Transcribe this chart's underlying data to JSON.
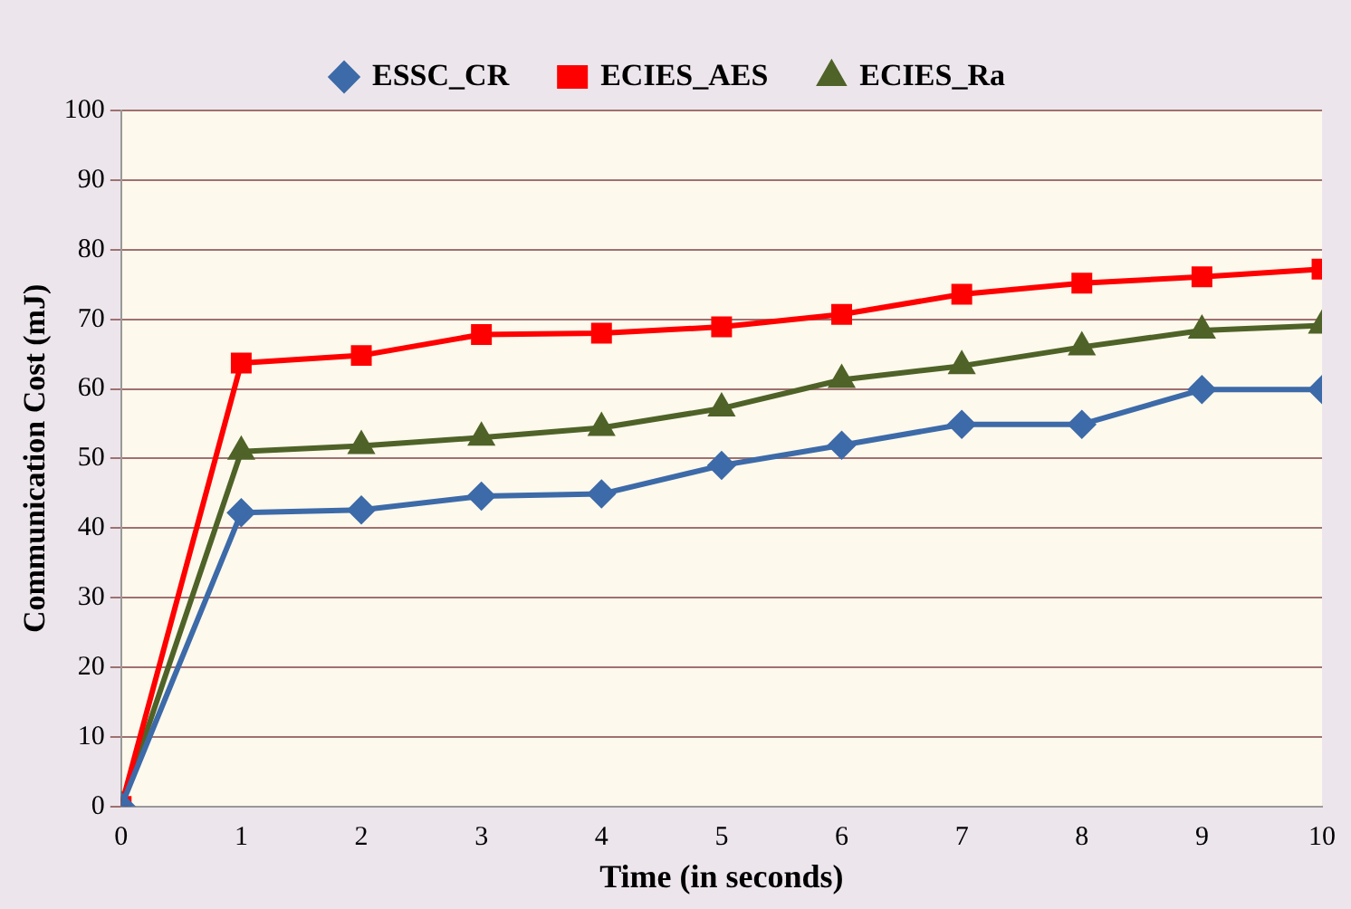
{
  "chart_data": {
    "type": "line",
    "xlabel": "Time (in seconds)",
    "ylabel": "Communication Cost (mJ)",
    "x": [
      0,
      1,
      2,
      3,
      4,
      5,
      6,
      7,
      8,
      9,
      10
    ],
    "series": [
      {
        "name": "ESSC_CR",
        "color": "#3d6aa8",
        "marker": "diamond",
        "values": [
          0,
          42.2,
          42.6,
          44.6,
          44.9,
          49,
          51.9,
          54.9,
          54.9,
          59.9,
          59.9
        ]
      },
      {
        "name": "ECIES_AES",
        "color": "#ff0000",
        "marker": "square",
        "values": [
          0,
          63.7,
          64.8,
          67.8,
          68,
          68.9,
          70.7,
          73.6,
          75.2,
          76.1,
          77.2
        ]
      },
      {
        "name": "ECIES_Ra",
        "color": "#4f6228",
        "marker": "triangle",
        "values": [
          0,
          51,
          51.8,
          53,
          54.4,
          57.2,
          61.3,
          63.3,
          66,
          68.4,
          69.1
        ]
      }
    ],
    "xlim": [
      0,
      10
    ],
    "xticks": [
      0,
      1,
      2,
      3,
      4,
      5,
      6,
      7,
      8,
      9,
      10
    ],
    "ylim": [
      0,
      100
    ],
    "yticks": [
      0,
      10,
      20,
      30,
      40,
      50,
      60,
      70,
      80,
      90,
      100
    ],
    "grid": "y",
    "legend": "top"
  }
}
